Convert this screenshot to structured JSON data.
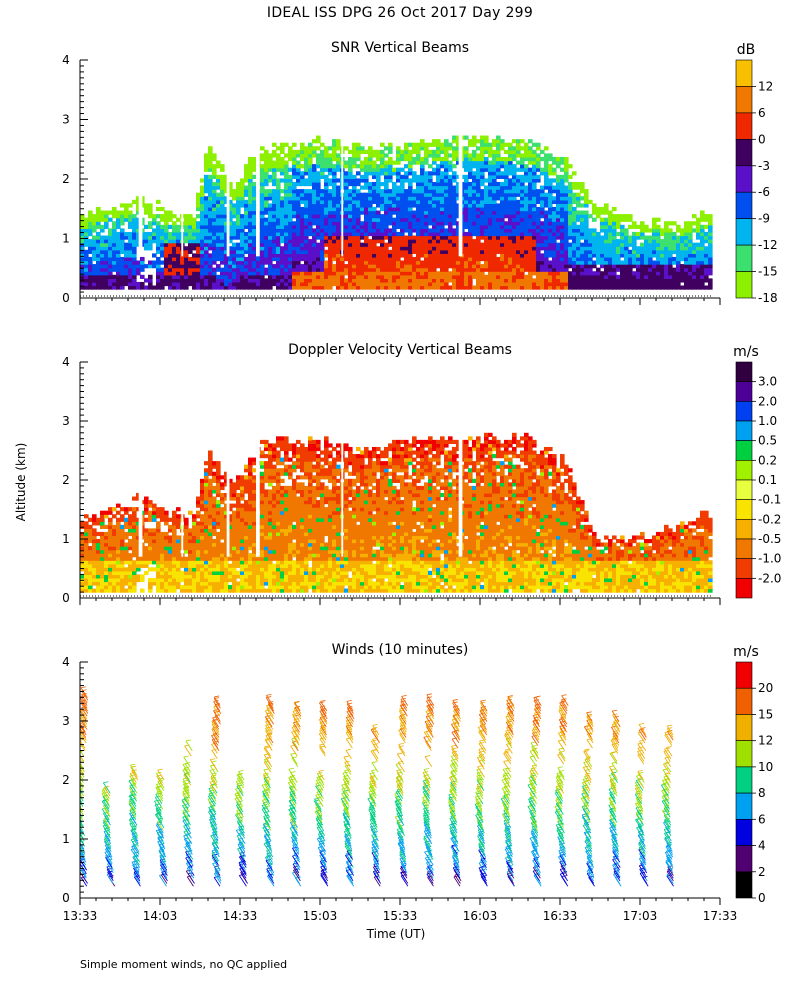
{
  "page": {
    "title": "IDEAL ISS DPG  26 Oct 2017 Day 299",
    "footnote": "Simple moment winds, no QC applied",
    "y_axis_label": "Altitude (km)",
    "x_axis_label": "Time (UT)"
  },
  "colors": {
    "snr": [
      "#8cf000",
      "#3ce06e",
      "#00b4f0",
      "#0050f0",
      "#5a10c8",
      "#400060",
      "#f02800",
      "#f07800",
      "#f8c000"
    ],
    "velocity": [
      "#f00000",
      "#f03c00",
      "#f07800",
      "#f8b000",
      "#f8e400",
      "#e8ff40",
      "#a0f000",
      "#00d040",
      "#00a0f0",
      "#0040f0",
      "#4c0098",
      "#300040"
    ],
    "winds": [
      "#000000",
      "#500070",
      "#0000e0",
      "#00a0f0",
      "#00d080",
      "#a0e000",
      "#f0b000",
      "#f06000",
      "#f00000"
    ]
  },
  "chart_data": [
    {
      "type": "heatmap",
      "title": "SNR Vertical Beams",
      "colorbar_unit": "dB",
      "colorbar_labels": [
        "12",
        "6",
        "0",
        "-3",
        "-6",
        "-9",
        "-12",
        "-15",
        "-18"
      ],
      "ylim": [
        0,
        4
      ],
      "y_ticks": [
        "0",
        "1",
        "2",
        "3",
        "4"
      ],
      "xlim_minutes_after_1333": [
        0,
        240
      ],
      "x_ticks": [
        "13:33",
        "14:03",
        "14:33",
        "15:03",
        "15:33",
        "16:03",
        "16:33",
        "17:03",
        "17:33"
      ],
      "show_x_tick_labels": false,
      "grid": false,
      "data_start": "13:33",
      "data_end": "17:30",
      "data_bottom_km": 0.15,
      "field": "snr",
      "echo_top_km": [
        [
          "13:33",
          1.35
        ],
        [
          "13:45",
          1.5
        ],
        [
          "13:55",
          1.65
        ],
        [
          "14:05",
          1.45
        ],
        [
          "14:15",
          1.35
        ],
        [
          "14:20",
          2.5
        ],
        [
          "14:30",
          1.9
        ],
        [
          "14:40",
          2.5
        ],
        [
          "15:00",
          2.6
        ],
        [
          "15:10",
          2.6
        ],
        [
          "15:20",
          2.5
        ],
        [
          "15:40",
          2.6
        ],
        [
          "16:00",
          2.7
        ],
        [
          "16:20",
          2.6
        ],
        [
          "16:35",
          2.3
        ],
        [
          "16:45",
          1.6
        ],
        [
          "17:00",
          1.3
        ],
        [
          "17:15",
          1.2
        ],
        [
          "17:30",
          1.45
        ]
      ]
    },
    {
      "type": "heatmap",
      "title": "Doppler Velocity Vertical Beams",
      "colorbar_unit": "m/s",
      "colorbar_labels": [
        "3.0",
        "2.0",
        "1.0",
        "0.5",
        "0.2",
        "0.1",
        "-0.1",
        "-0.2",
        "-0.5",
        "-1.0",
        "-2.0"
      ],
      "ylim": [
        0,
        4
      ],
      "y_ticks": [
        "0",
        "1",
        "2",
        "3",
        "4"
      ],
      "xlim_minutes_after_1333": [
        0,
        240
      ],
      "x_ticks": [
        "13:33",
        "14:03",
        "14:33",
        "15:03",
        "15:33",
        "16:03",
        "16:33",
        "17:03",
        "17:33"
      ],
      "show_x_tick_labels": false,
      "grid": false,
      "data_start": "13:33",
      "data_end": "17:30",
      "data_bottom_km": 0.1,
      "field": "velocity",
      "echo_top_km": [
        [
          "13:33",
          1.35
        ],
        [
          "13:45",
          1.5
        ],
        [
          "13:55",
          1.7
        ],
        [
          "14:05",
          1.45
        ],
        [
          "14:15",
          1.35
        ],
        [
          "14:20",
          2.5
        ],
        [
          "14:30",
          1.9
        ],
        [
          "14:40",
          2.6
        ],
        [
          "15:00",
          2.7
        ],
        [
          "15:10",
          2.6
        ],
        [
          "15:20",
          2.5
        ],
        [
          "15:40",
          2.7
        ],
        [
          "16:00",
          2.7
        ],
        [
          "16:20",
          2.7
        ],
        [
          "16:35",
          2.3
        ],
        [
          "16:45",
          1.0
        ],
        [
          "17:00",
          1.0
        ],
        [
          "17:15",
          1.15
        ],
        [
          "17:30",
          1.5
        ]
      ]
    },
    {
      "type": "scatter",
      "title": "Winds (10 minutes)",
      "colorbar_unit": "m/s",
      "colorbar_labels": [
        "20",
        "15",
        "12",
        "10",
        "8",
        "6",
        "4",
        "2",
        "0"
      ],
      "ylim": [
        0,
        4
      ],
      "y_ticks": [
        "0",
        "1",
        "2",
        "3",
        "4"
      ],
      "xlim_minutes_after_1333": [
        0,
        240
      ],
      "x_ticks": [
        "13:33",
        "14:03",
        "14:33",
        "15:03",
        "15:33",
        "16:03",
        "16:33",
        "17:03",
        "17:33"
      ],
      "show_x_tick_labels": true,
      "grid": false,
      "profile_times": [
        "13:36",
        "13:46",
        "13:56",
        "14:06",
        "14:16",
        "14:26",
        "14:36",
        "14:46",
        "14:56",
        "15:06",
        "15:16",
        "15:26",
        "15:36",
        "15:46",
        "15:56",
        "16:06",
        "16:16",
        "16:26",
        "16:36",
        "16:46",
        "16:56",
        "17:06",
        "17:16"
      ],
      "profile_tops_km": [
        3.4,
        1.8,
        2.1,
        2.0,
        2.5,
        3.3,
        2.0,
        3.3,
        3.2,
        3.2,
        3.2,
        2.8,
        3.3,
        3.3,
        3.2,
        3.2,
        3.3,
        3.3,
        3.3,
        3.0,
        3.0,
        2.8,
        2.8
      ]
    }
  ]
}
